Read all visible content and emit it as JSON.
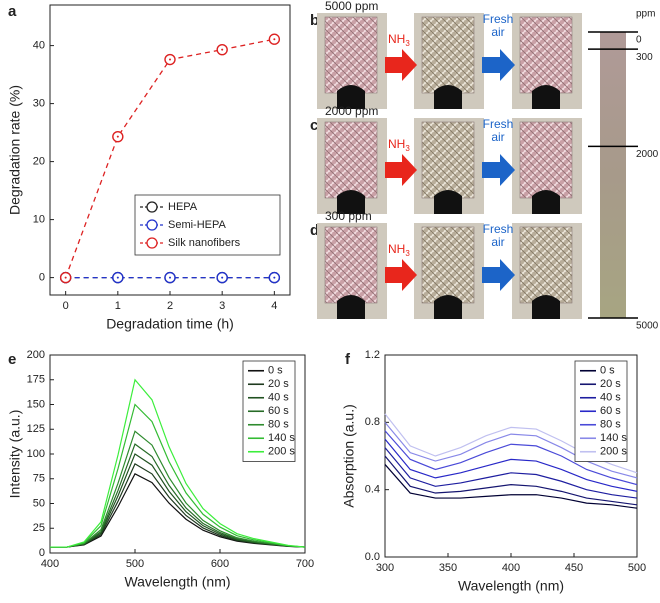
{
  "chart_data": [
    {
      "type": "line",
      "panel_label": "a",
      "x_label": "Degradation time (h)",
      "y_label": "Degradation rate (%)",
      "x": [
        0,
        1,
        2,
        3,
        4
      ],
      "xlim": [
        -0.3,
        4.3
      ],
      "xticks": [
        0,
        1,
        2,
        3,
        4
      ],
      "ylim": [
        -3,
        47
      ],
      "yticks": [
        0,
        10,
        20,
        30,
        40
      ],
      "marker": "circle",
      "linestyle": "dashed",
      "legend": "lower right",
      "series": [
        {
          "name": "HEPA",
          "color": "#222222",
          "values": [
            0,
            0,
            0,
            0,
            0
          ]
        },
        {
          "name": "Semi-HEPA",
          "color": "#2233cc",
          "values": [
            0,
            0,
            0,
            0,
            0
          ]
        },
        {
          "name": "Silk nanofibers",
          "color": "#dd2222",
          "values": [
            0,
            24.3,
            37.6,
            39.3,
            41.1
          ]
        }
      ]
    },
    {
      "type": "line",
      "panel_label": "e",
      "x_label": "Wavelength (nm)",
      "y_label": "Intensity (a.u.)",
      "x": [
        400,
        420,
        440,
        460,
        480,
        500,
        520,
        540,
        560,
        580,
        600,
        620,
        640,
        660,
        680,
        700
      ],
      "xlim": [
        400,
        700
      ],
      "xticks": [
        400,
        500,
        600,
        700
      ],
      "ylim": [
        0,
        200
      ],
      "yticks": [
        0,
        25,
        50,
        75,
        100,
        125,
        150,
        175,
        200
      ],
      "linestyle": "solid",
      "legend": "upper right",
      "series": [
        {
          "name": "0 s",
          "color": "#111111",
          "values": [
            6,
            6,
            8.2,
            17.1,
            46.7,
            80,
            71.1,
            50.4,
            34.1,
            23,
            16.4,
            11.9,
            9.7,
            8.2,
            6.7,
            6
          ]
        },
        {
          "name": "20 s",
          "color": "#1e3a1e",
          "values": [
            6,
            6,
            8.5,
            18.6,
            52.2,
            90,
            79.9,
            56.4,
            37.9,
            25.3,
            17.8,
            12.7,
            10.2,
            8.5,
            6.8,
            6
          ]
        },
        {
          "name": "40 s",
          "color": "#215221",
          "values": [
            6,
            6,
            8.8,
            20.1,
            57.7,
            100,
            88.7,
            62.4,
            41.7,
            27.6,
            19.2,
            13.5,
            10.7,
            8.8,
            6.9,
            6
          ]
        },
        {
          "name": "60 s",
          "color": "#276b27",
          "values": [
            6,
            6,
            9.1,
            21.6,
            63.2,
            110,
            97.5,
            68.4,
            45.5,
            29.9,
            20.6,
            14.3,
            11.2,
            9.1,
            7,
            6
          ]
        },
        {
          "name": "80 s",
          "color": "#2e8b2e",
          "values": [
            6,
            6,
            9.5,
            23.6,
            70.4,
            123,
            109,
            76.2,
            50.5,
            32.9,
            22.4,
            15.4,
            11.9,
            9.5,
            7.2,
            6
          ]
        },
        {
          "name": "140 s",
          "color": "#33bb33",
          "values": [
            6,
            6,
            10.3,
            27.6,
            85.2,
            150,
            132.7,
            92.4,
            60.7,
            39.1,
            26.2,
            17.5,
            13.2,
            10.3,
            7.4,
            6
          ]
        },
        {
          "name": "200 s",
          "color": "#3cee3c",
          "values": [
            6,
            6,
            11.1,
            31.4,
            99,
            175,
            154.7,
            107.4,
            70.2,
            44.9,
            29.7,
            19.5,
            14.5,
            11.1,
            7.7,
            6
          ]
        }
      ]
    },
    {
      "type": "line",
      "panel_label": "f",
      "x_label": "Wavelength (nm)",
      "y_label": "Absorption (a.u.)",
      "x": [
        300,
        320,
        340,
        360,
        380,
        400,
        420,
        440,
        460,
        480,
        500
      ],
      "xlim": [
        300,
        500
      ],
      "xticks": [
        300,
        350,
        400,
        450,
        500
      ],
      "ylim": [
        0,
        1.2
      ],
      "yticks": [
        {
          "value": 0,
          "label": "0.0"
        },
        0.4,
        0.8,
        1.2
      ],
      "linestyle": "solid",
      "legend": "upper right",
      "series": [
        {
          "name": "0 s",
          "color": "#000033",
          "values": [
            0.55,
            0.38,
            0.35,
            0.35,
            0.36,
            0.37,
            0.37,
            0.35,
            0.32,
            0.31,
            0.29
          ]
        },
        {
          "name": "20 s",
          "color": "#151570",
          "values": [
            0.6,
            0.42,
            0.38,
            0.39,
            0.41,
            0.43,
            0.42,
            0.39,
            0.35,
            0.33,
            0.31
          ]
        },
        {
          "name": "40 s",
          "color": "#1e1ea0",
          "values": [
            0.65,
            0.47,
            0.42,
            0.44,
            0.47,
            0.5,
            0.49,
            0.45,
            0.4,
            0.37,
            0.35
          ]
        },
        {
          "name": "60 s",
          "color": "#2828c8",
          "values": [
            0.7,
            0.52,
            0.47,
            0.5,
            0.54,
            0.58,
            0.57,
            0.52,
            0.46,
            0.42,
            0.39
          ]
        },
        {
          "name": "80 s",
          "color": "#4a4ad8",
          "values": [
            0.75,
            0.58,
            0.52,
            0.56,
            0.62,
            0.67,
            0.66,
            0.6,
            0.52,
            0.47,
            0.43
          ]
        },
        {
          "name": "140 s",
          "color": "#8888e8",
          "values": [
            0.8,
            0.62,
            0.57,
            0.61,
            0.68,
            0.73,
            0.72,
            0.65,
            0.57,
            0.51,
            0.47
          ]
        },
        {
          "name": "200 s",
          "color": "#c0c0f0",
          "values": [
            0.85,
            0.66,
            0.6,
            0.65,
            0.72,
            0.77,
            0.76,
            0.69,
            0.61,
            0.55,
            0.5
          ]
        }
      ]
    }
  ],
  "photo_panel": {
    "rows": [
      {
        "label": "b",
        "concentration": "5000 ppm"
      },
      {
        "label": "c",
        "concentration": "2000 ppm"
      },
      {
        "label": "d",
        "concentration": "300 ppm"
      }
    ],
    "gas": "NH",
    "gas_subscript": "3",
    "recovery": [
      "Fresh",
      "air"
    ],
    "colorbar": {
      "unit": "ppm",
      "lim": [
        0,
        5000
      ],
      "ticks": [
        0,
        300,
        2000,
        5000
      ]
    }
  }
}
